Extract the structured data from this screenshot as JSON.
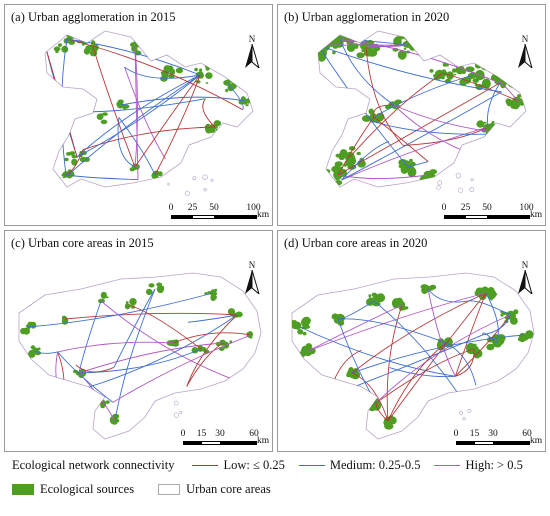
{
  "panels": [
    {
      "id": "a",
      "title": "(a) Urban agglomeration in 2015",
      "scale_ticks": [
        "0",
        "25",
        "50",
        "100"
      ],
      "scale_unit": "km",
      "north_label": "N"
    },
    {
      "id": "b",
      "title": "(b) Urban agglomeration in 2020",
      "scale_ticks": [
        "0",
        "25",
        "50",
        "100"
      ],
      "scale_unit": "km",
      "north_label": "N"
    },
    {
      "id": "c",
      "title": "(c) Urban core areas in 2015",
      "scale_ticks": [
        "0",
        "15",
        "30",
        "60"
      ],
      "scale_unit": "km",
      "north_label": "N"
    },
    {
      "id": "d",
      "title": "(d) Urban core areas in 2020",
      "scale_ticks": [
        "0",
        "15",
        "30",
        "60"
      ],
      "scale_unit": "km",
      "north_label": "N"
    }
  ],
  "legend": {
    "connectivity_heading": "Ecological network connectivity",
    "low": {
      "label": "Low: ≤ 0.25",
      "color": "#b33a3a"
    },
    "medium": {
      "label": "Medium: 0.25-0.5",
      "color": "#3d6fd0"
    },
    "high": {
      "label": "High: > 0.5",
      "color": "#b158c8"
    },
    "sources": {
      "label": "Ecological sources",
      "color": "#4f9e24"
    },
    "core": {
      "label": "Urban core areas",
      "color": "#ffffff"
    }
  }
}
